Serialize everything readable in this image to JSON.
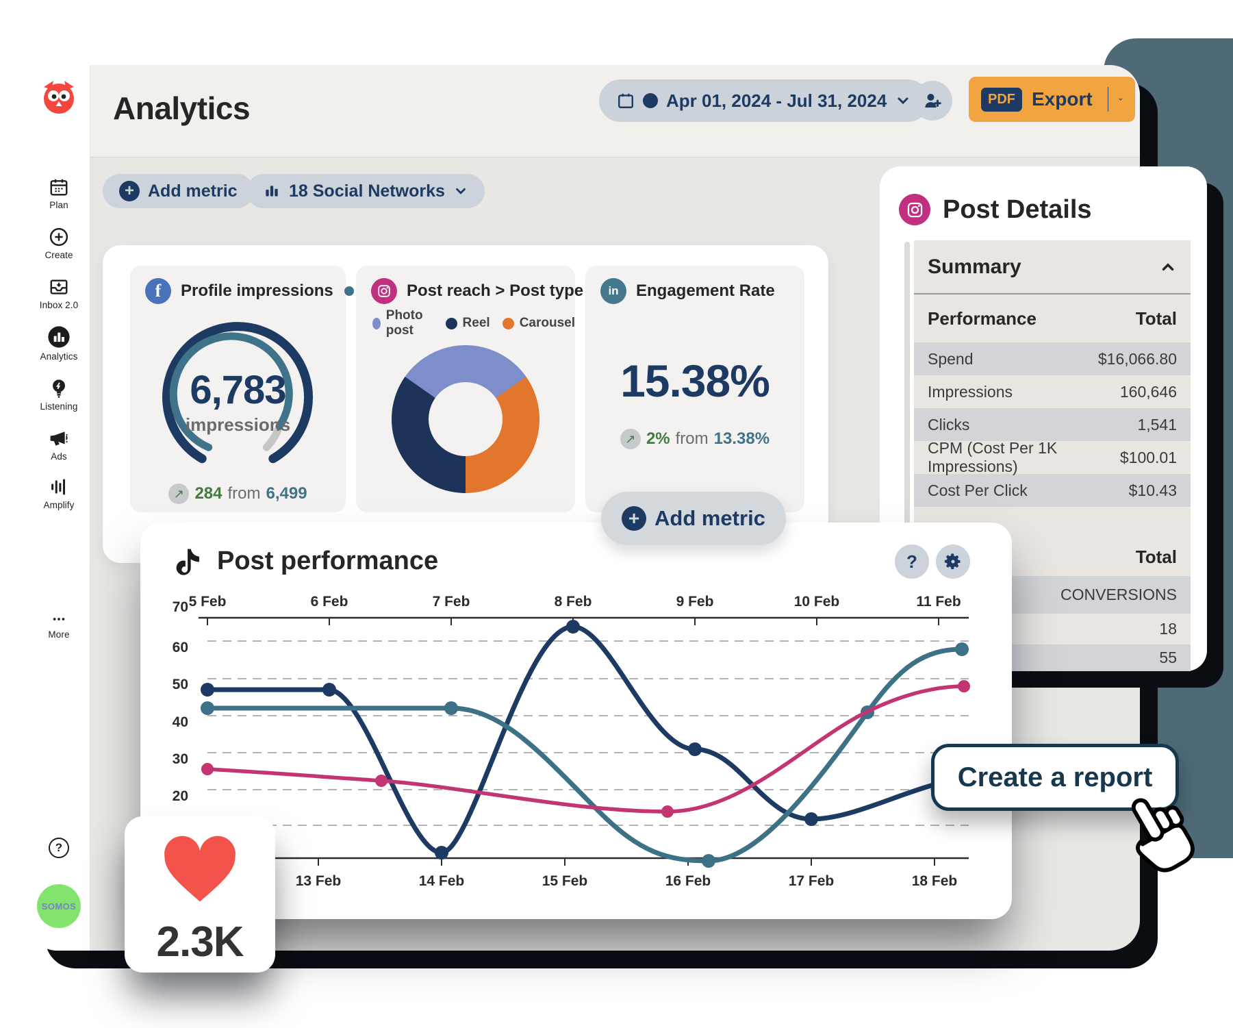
{
  "window": {
    "title": "Analytics"
  },
  "header": {
    "date_range": "Apr 01, 2024 - Jul 31, 2024",
    "export": {
      "label": "Export",
      "format_badge": "PDF"
    }
  },
  "toolbar": {
    "add_metric_label": "Add metric",
    "networks_label": "18 Social Networks"
  },
  "sidebar": {
    "items": [
      {
        "label": "Plan"
      },
      {
        "label": "Create"
      },
      {
        "label": "Inbox 2.0"
      },
      {
        "label": "Analytics",
        "active": true
      },
      {
        "label": "Listening"
      },
      {
        "label": "Ads"
      },
      {
        "label": "Amplify"
      },
      {
        "label": "More"
      }
    ],
    "badge": "SOMOS"
  },
  "metric_cards": {
    "profile_impressions": {
      "network": "Facebook",
      "title": "Profile impressions",
      "value": "6,783",
      "unit": "impressions",
      "delta": "284",
      "from_word": "from",
      "previous": "6,499"
    },
    "post_reach": {
      "network": "Instagram",
      "title": "Post reach > Post type",
      "legend": [
        {
          "label": "Photo post",
          "color": "#7d8eca"
        },
        {
          "label": "Reel",
          "color": "#1e335a"
        },
        {
          "label": "Carousel",
          "color": "#e2762d"
        }
      ],
      "segments_pct": {
        "photo_post": 31,
        "carousel": 35,
        "reel": 34
      }
    },
    "engagement_rate": {
      "network": "LinkedIn",
      "title": "Engagement Rate",
      "value": "15.38%",
      "delta": "2%",
      "from_word": "from",
      "previous": "13.38%"
    },
    "add_metric_label": "Add metric"
  },
  "post_details": {
    "title": "Post Details",
    "network": "Instagram",
    "section_title": "Summary",
    "table": {
      "columns": [
        "Performance",
        "Total"
      ],
      "rows": [
        [
          "Spend",
          "$16,066.80"
        ],
        [
          "Impressions",
          "160,646"
        ],
        [
          "Clicks",
          "1,541"
        ],
        [
          "CPM (Cost Per 1K Impressions)",
          "$100.01"
        ],
        [
          "Cost Per Click",
          "$10.43"
        ]
      ]
    },
    "secondary_table": {
      "header": "Total",
      "rows": [
        "CONVERSIONS",
        "18",
        "55"
      ]
    }
  },
  "post_performance": {
    "title": "Post performance"
  },
  "chart_data": {
    "type": "line",
    "title": "Post performance",
    "top_axis_dates": [
      "5 Feb",
      "6 Feb",
      "7 Feb",
      "8 Feb",
      "9 Feb",
      "10 Feb",
      "11 Feb"
    ],
    "bottom_axis_dates": [
      "13 Feb",
      "14 Feb",
      "15 Feb",
      "16 Feb",
      "17 Feb",
      "18 Feb"
    ],
    "y_ticks": [
      70,
      60,
      50,
      40,
      30,
      20
    ],
    "ylim": [
      0,
      70
    ],
    "grid": "dashed horizontal",
    "legend_position": "none",
    "series": [
      {
        "name": "series-navy",
        "color": "#1d3a63",
        "approx_points": [
          [
            "5 Feb",
            48
          ],
          [
            "6 Feb",
            48
          ],
          [
            "14 Feb",
            4
          ],
          [
            "8 Feb",
            65
          ],
          [
            "9 Feb",
            32
          ],
          [
            "17 Feb",
            13
          ]
        ]
      },
      {
        "name": "series-teal",
        "color": "#3d7286",
        "approx_points": [
          [
            "5 Feb",
            43
          ],
          [
            "7 Feb",
            43
          ],
          [
            "16 Feb",
            2
          ],
          [
            "10 Feb",
            42
          ],
          [
            "11 Feb",
            59
          ]
        ]
      },
      {
        "name": "series-pink",
        "color": "#c23572",
        "approx_points": [
          [
            "5 Feb",
            27
          ],
          [
            "13 Feb",
            23
          ],
          [
            "16 Feb",
            15
          ],
          [
            "11 Feb",
            49
          ]
        ]
      }
    ]
  },
  "create_report_label": "Create a report",
  "likes_badge": {
    "value": "2.3K"
  },
  "colors": {
    "accent_navy": "#1d3a63",
    "accent_orange": "#f1a43f",
    "accent_teal": "#3f7389",
    "pink_line": "#c23572",
    "green_positive": "#3e7d3e",
    "slate_backdrop": "#4d6a76",
    "heart_red": "#f4534b",
    "instagram_pink": "#c13080",
    "facebook_blue": "#4a72b8",
    "linkedin_teal": "#45788f"
  }
}
